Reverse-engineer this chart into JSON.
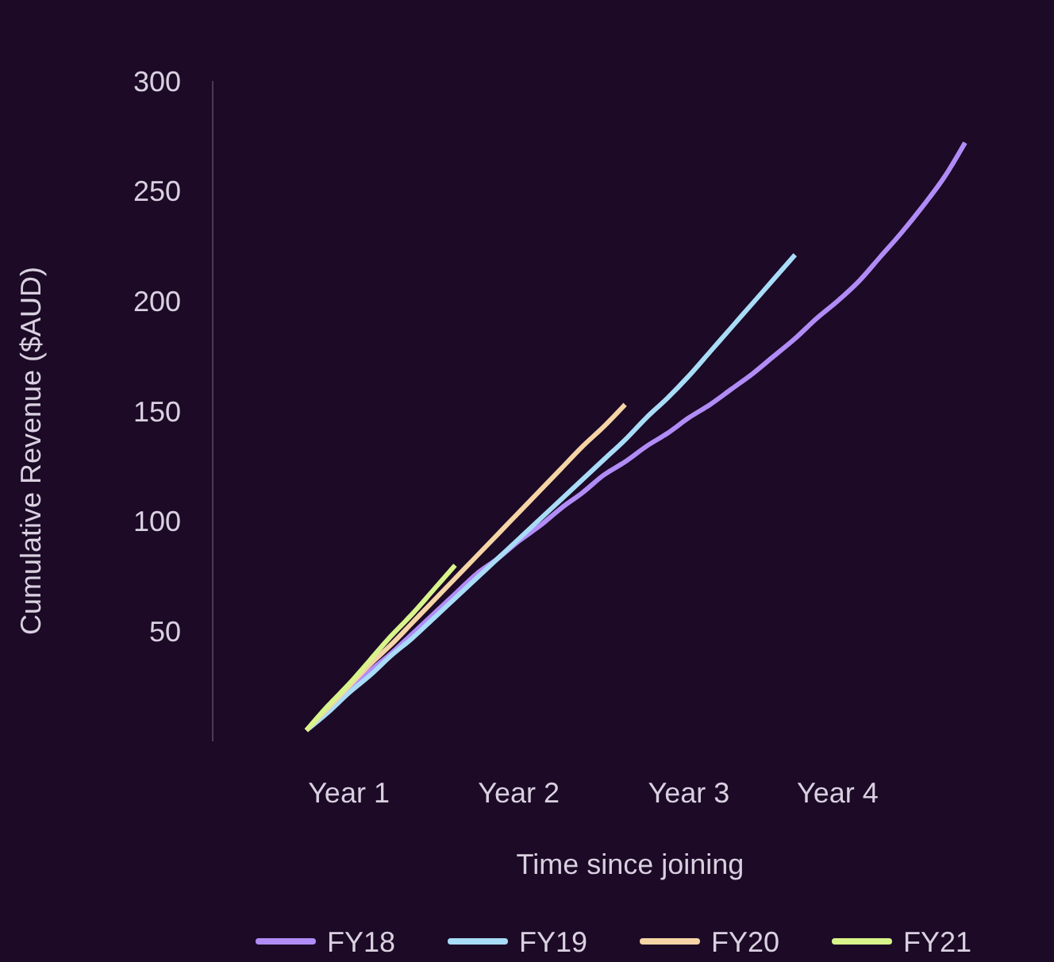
{
  "chart_data": {
    "type": "line",
    "xlabel": "Time since joining",
    "ylabel": "Cumulative Revenue ($AUD)",
    "categories": [
      null,
      null,
      "Year 1",
      null,
      null,
      null,
      null,
      null,
      null,
      null,
      "Year 2",
      null,
      null,
      null,
      null,
      null,
      null,
      null,
      "Year 3",
      null,
      null,
      null,
      null,
      null,
      null,
      "Year 4",
      null,
      null,
      null,
      null,
      null,
      null
    ],
    "ylim": [
      0,
      300
    ],
    "yticks": [
      50,
      100,
      150,
      200,
      250,
      300
    ],
    "grid": false,
    "legend": "bottom",
    "marker": "none",
    "line_style": "solid",
    "series": [
      {
        "name": "FY18",
        "color": "#b18cf7",
        "values": [
          5,
          14,
          23,
          32,
          40,
          49,
          58,
          67,
          76,
          83,
          91,
          98,
          106,
          113,
          121,
          127,
          134,
          140,
          147,
          153,
          160,
          167,
          175,
          183,
          192,
          200,
          209,
          220,
          231,
          243,
          256,
          272
        ]
      },
      {
        "name": "FY19",
        "color": "#a9dcf7",
        "values": [
          5,
          13,
          22,
          30,
          39,
          47,
          56,
          65,
          74,
          83,
          92,
          101,
          110,
          119,
          128,
          137,
          147,
          156,
          166,
          177,
          188,
          199,
          210,
          221,
          null,
          null,
          null,
          null,
          null,
          null,
          null,
          null
        ]
      },
      {
        "name": "FY20",
        "color": "#f5d4a6",
        "values": [
          5,
          15,
          25,
          35,
          44,
          54,
          64,
          74,
          84,
          94,
          104,
          114,
          124,
          134,
          143,
          153,
          null,
          null,
          null,
          null,
          null,
          null,
          null,
          null,
          null,
          null,
          null,
          null,
          null,
          null,
          null,
          null
        ]
      },
      {
        "name": "FY21",
        "color": "#d8f48b",
        "values": [
          5,
          16,
          26,
          37,
          48,
          58,
          69,
          80,
          null,
          null,
          null,
          null,
          null,
          null,
          null,
          null,
          null,
          null,
          null,
          null,
          null,
          null,
          null,
          null,
          null,
          null,
          null,
          null,
          null,
          null,
          null,
          null
        ]
      }
    ]
  }
}
